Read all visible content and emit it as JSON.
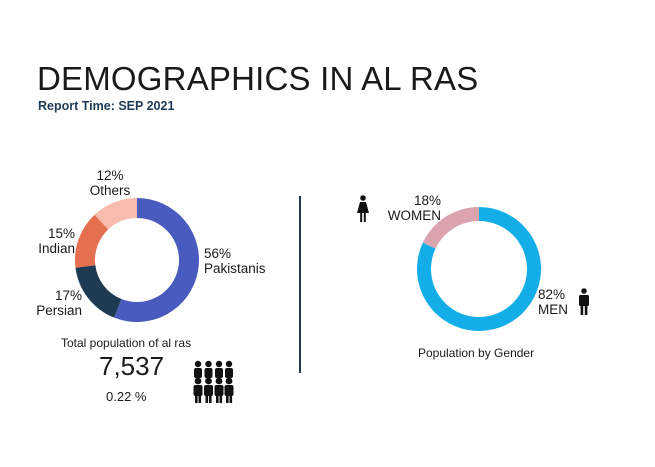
{
  "title": "DEMOGRAPHICS IN AL RAS",
  "subtitle": "Report Time: SEP 2021",
  "chart_data": [
    {
      "type": "pie",
      "variant": "donut",
      "slices": [
        {
          "label": "Pakistanis",
          "value": 56,
          "value_label": "56%",
          "color": "#4a5bbf"
        },
        {
          "label": "Persian",
          "value": 17,
          "value_label": "17%",
          "color": "#1f3b54"
        },
        {
          "label": "Indian",
          "value": 15,
          "value_label": "15%",
          "color": "#e4704f"
        },
        {
          "label": "Others",
          "value": 12,
          "value_label": "12%",
          "color": "#f7bcad"
        }
      ]
    },
    {
      "type": "pie",
      "variant": "donut",
      "title": "Population by Gender",
      "slices": [
        {
          "label": "MEN",
          "value": 82,
          "value_label": "82%",
          "color": "#13aee8"
        },
        {
          "label": "WOMEN",
          "value": 18,
          "value_label": "18%",
          "color": "#dba3ae"
        }
      ]
    }
  ],
  "summary": {
    "label": "Total population of al ras",
    "value": "7,537",
    "percent": "0.22 %"
  },
  "icons": {
    "group": "people-group-icon",
    "woman": "woman-icon",
    "man": "man-icon"
  }
}
